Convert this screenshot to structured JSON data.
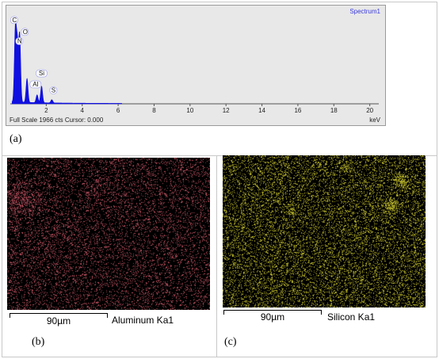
{
  "figure": {
    "spectrum": {
      "title": "Spectrum1",
      "status": "Full Scale 1966 cts Cursor: 0.000",
      "unit": "keV",
      "panel_label": "(a)"
    },
    "map_aluminum": {
      "scale_bar": "90µm",
      "element": "Aluminum Ka1",
      "panel_label": "(b)",
      "color": "#d05a6a"
    },
    "map_silicon": {
      "scale_bar": "90µm",
      "element": "Silicon Ka1",
      "panel_label": "(c)",
      "color": "#d6d230"
    }
  },
  "chart_data": {
    "type": "line",
    "title": "Spectrum1",
    "xlabel": "keV",
    "ylabel": "",
    "xlim": [
      0,
      20.5
    ],
    "ylim": [
      0,
      1966
    ],
    "x_ticks": [
      "2",
      "4",
      "6",
      "8",
      "10",
      "12",
      "14",
      "16",
      "18",
      "20"
    ],
    "peaks": [
      {
        "label": "C",
        "x": 0.28,
        "y": 1560
      },
      {
        "label": "N",
        "x": 0.39,
        "y": 1180
      },
      {
        "label": "O",
        "x": 0.52,
        "y": 1450
      },
      {
        "label": "Al",
        "x": 1.49,
        "y": 170
      },
      {
        "label": "Si",
        "x": 1.74,
        "y": 360
      },
      {
        "label": "S",
        "x": 2.31,
        "y": 70
      }
    ],
    "extra_peaks": [
      {
        "x": 0.93,
        "y": 520
      }
    ],
    "peak_labels": [
      "C",
      "O",
      "N",
      "Si",
      "Al",
      "S"
    ],
    "grid": false
  }
}
